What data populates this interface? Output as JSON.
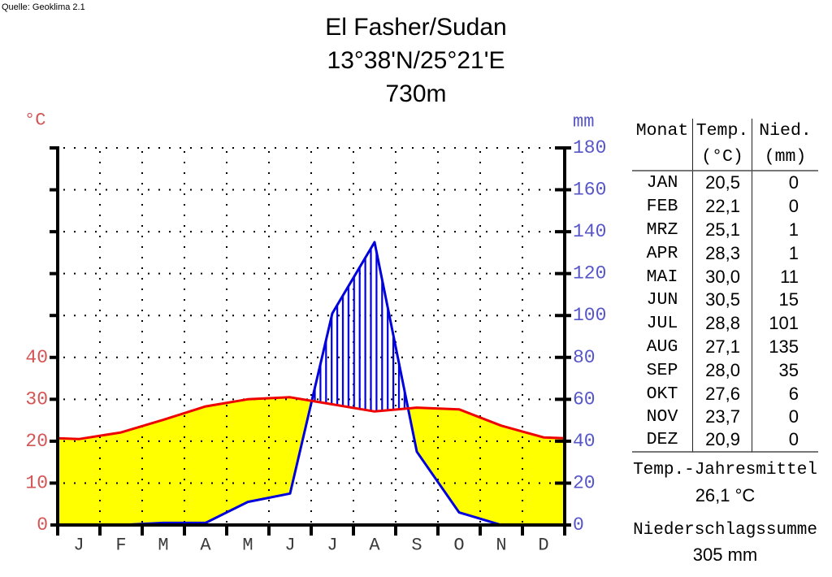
{
  "source": "Quelle: Geoklima 2.1",
  "title": {
    "location": "El Fasher/Sudan",
    "coordinates": "13°38'N/25°21'E",
    "elevation": "730m"
  },
  "chart_data": {
    "type": "line",
    "title": "Klimadiagramm El Fasher/Sudan",
    "categories": [
      "JAN",
      "FEB",
      "MRZ",
      "APR",
      "MAI",
      "JUN",
      "JUL",
      "AUG",
      "SEP",
      "OKT",
      "NOV",
      "DEZ"
    ],
    "month_letters": [
      "J",
      "F",
      "M",
      "A",
      "M",
      "J",
      "J",
      "A",
      "S",
      "O",
      "N",
      "D"
    ],
    "series": [
      {
        "name": "Temperatur",
        "unit": "°C",
        "axis": "left",
        "color": "#ee0000",
        "values": [
          20.5,
          22.1,
          25.1,
          28.3,
          30.0,
          30.5,
          28.8,
          27.1,
          28.0,
          27.6,
          23.7,
          20.9
        ]
      },
      {
        "name": "Niederschlag",
        "unit": "mm",
        "axis": "right",
        "color": "#0000dd",
        "values": [
          0,
          0,
          1,
          1,
          11,
          15,
          101,
          135,
          35,
          6,
          0,
          0
        ]
      }
    ],
    "left_axis": {
      "label": "°C",
      "ticks": [
        0,
        10,
        20,
        30,
        40
      ],
      "color": "#d45555",
      "range": [
        0,
        90
      ]
    },
    "right_axis": {
      "label": "mm",
      "ticks": [
        0,
        20,
        40,
        60,
        80,
        100,
        120,
        140,
        160,
        180
      ],
      "color": "#5656c8",
      "range": [
        0,
        180
      ]
    },
    "scale_rule": "10 °C = 20 mm",
    "grid": "dotted",
    "fills": {
      "arid_area": "#ffff00",
      "humid_hatch": "#0000dd"
    },
    "axis_color": "#000000",
    "month_label_color": "#3a3a3a"
  },
  "table": {
    "headers": {
      "month": "Monat",
      "temp": "Temp.",
      "temp_unit": "(°C)",
      "precip": "Nied.",
      "precip_unit": "(mm)"
    },
    "rows": [
      {
        "month": "JAN",
        "temp": "20,5",
        "precip": "0"
      },
      {
        "month": "FEB",
        "temp": "22,1",
        "precip": "0"
      },
      {
        "month": "MRZ",
        "temp": "25,1",
        "precip": "1"
      },
      {
        "month": "APR",
        "temp": "28,3",
        "precip": "1"
      },
      {
        "month": "MAI",
        "temp": "30,0",
        "precip": "11"
      },
      {
        "month": "JUN",
        "temp": "30,5",
        "precip": "15"
      },
      {
        "month": "JUL",
        "temp": "28,8",
        "precip": "101"
      },
      {
        "month": "AUG",
        "temp": "27,1",
        "precip": "135"
      },
      {
        "month": "SEP",
        "temp": "28,0",
        "precip": "35"
      },
      {
        "month": "OKT",
        "temp": "27,6",
        "precip": "6"
      },
      {
        "month": "NOV",
        "temp": "23,7",
        "precip": "0"
      },
      {
        "month": "DEZ",
        "temp": "20,9",
        "precip": "0"
      }
    ]
  },
  "summary": {
    "temp_mean_label": "Temp.-Jahresmittel",
    "temp_mean_value": "26,1 °C",
    "precip_sum_label": "Niederschlagssumme",
    "precip_sum_value": "305 mm"
  }
}
